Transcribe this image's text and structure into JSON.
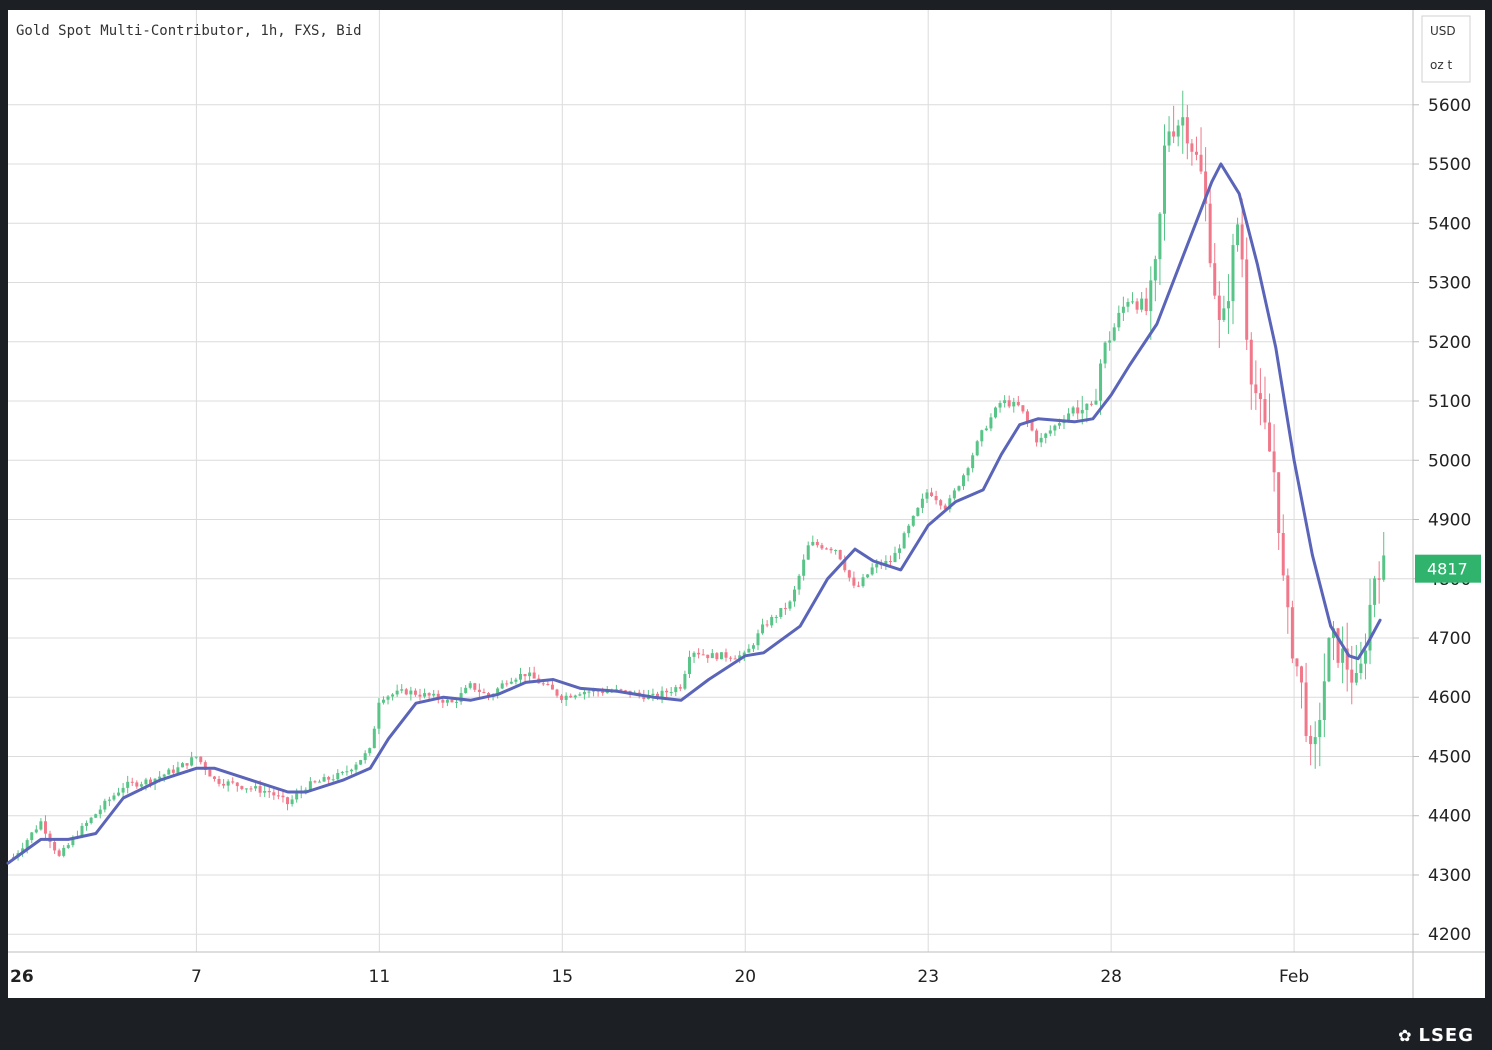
{
  "chart_data": {
    "type": "candlestick",
    "title": "Gold Spot Multi-Contributor, 1h, FXS, Bid",
    "currency": "USD",
    "unit": "oz t",
    "ylim": [
      4170,
      5760
    ],
    "yticks": [
      4200,
      4300,
      4400,
      4500,
      4600,
      4700,
      4800,
      4900,
      5000,
      5100,
      5200,
      5300,
      5400,
      5500,
      5600
    ],
    "xticks": [
      {
        "label": "26",
        "t": 0
      },
      {
        "label": "7",
        "t": 10
      },
      {
        "label": "11",
        "t": 20
      },
      {
        "label": "15",
        "t": 30
      },
      {
        "label": "20",
        "t": 40
      },
      {
        "label": "23",
        "t": 50
      },
      {
        "label": "28",
        "t": 60
      },
      {
        "label": "Feb",
        "t": 70
      }
    ],
    "xlim": [
      -0.3,
      76.5
    ],
    "last_price": "4817",
    "colors": {
      "up": "#58c487",
      "down": "#f0788a",
      "ma": "#5a64b8",
      "last": "#2fb36d"
    },
    "price_path": [
      [
        0,
        4330
      ],
      [
        1.5,
        4390
      ],
      [
        2.5,
        4330
      ],
      [
        3.5,
        4370
      ],
      [
        5,
        4420
      ],
      [
        6,
        4450
      ],
      [
        7.5,
        4460
      ],
      [
        9,
        4480
      ],
      [
        10,
        4500
      ],
      [
        11,
        4460
      ],
      [
        12.5,
        4450
      ],
      [
        14,
        4440
      ],
      [
        15,
        4420
      ],
      [
        16,
        4450
      ],
      [
        18,
        4470
      ],
      [
        19.5,
        4510
      ],
      [
        20,
        4600
      ],
      [
        21.5,
        4610
      ],
      [
        23,
        4600
      ],
      [
        24,
        4590
      ],
      [
        25,
        4620
      ],
      [
        26,
        4600
      ],
      [
        27,
        4630
      ],
      [
        28,
        4640
      ],
      [
        29,
        4620
      ],
      [
        30,
        4600
      ],
      [
        31,
        4610
      ],
      [
        33,
        4610
      ],
      [
        35,
        4600
      ],
      [
        36.5,
        4620
      ],
      [
        37,
        4680
      ],
      [
        38,
        4670
      ],
      [
        40,
        4670
      ],
      [
        41,
        4720
      ],
      [
        42.5,
        4760
      ],
      [
        43.5,
        4860
      ],
      [
        45,
        4850
      ],
      [
        46,
        4780
      ],
      [
        47,
        4820
      ],
      [
        48,
        4830
      ],
      [
        49,
        4890
      ],
      [
        50,
        4950
      ],
      [
        51,
        4920
      ],
      [
        52,
        4980
      ],
      [
        53,
        5050
      ],
      [
        54,
        5100
      ],
      [
        55,
        5090
      ],
      [
        56,
        5030
      ],
      [
        57,
        5060
      ],
      [
        58,
        5090
      ],
      [
        59,
        5080
      ],
      [
        59.5,
        5180
      ],
      [
        61,
        5280
      ],
      [
        62,
        5250
      ],
      [
        62.5,
        5330
      ],
      [
        63,
        5560
      ],
      [
        64,
        5580
      ],
      [
        65,
        5470
      ],
      [
        66,
        5200
      ],
      [
        67,
        5420
      ],
      [
        67.5,
        5180
      ],
      [
        68,
        5100
      ],
      [
        69,
        4970
      ],
      [
        69.5,
        4750
      ],
      [
        70.5,
        4600
      ],
      [
        71,
        4470
      ],
      [
        71.5,
        4600
      ],
      [
        72,
        4700
      ],
      [
        73,
        4650
      ],
      [
        73.5,
        4610
      ],
      [
        74,
        4720
      ],
      [
        74.5,
        4830
      ],
      [
        74.9,
        4817
      ]
    ],
    "ma_path": [
      [
        -0.3,
        4320
      ],
      [
        1.5,
        4360
      ],
      [
        3,
        4360
      ],
      [
        4.5,
        4370
      ],
      [
        6,
        4430
      ],
      [
        8,
        4460
      ],
      [
        10,
        4480
      ],
      [
        11,
        4480
      ],
      [
        13,
        4460
      ],
      [
        15,
        4440
      ],
      [
        16,
        4440
      ],
      [
        18,
        4460
      ],
      [
        19.5,
        4480
      ],
      [
        20.5,
        4530
      ],
      [
        22,
        4590
      ],
      [
        23.5,
        4600
      ],
      [
        25,
        4595
      ],
      [
        26.5,
        4605
      ],
      [
        28,
        4625
      ],
      [
        29.5,
        4630
      ],
      [
        31,
        4615
      ],
      [
        33,
        4610
      ],
      [
        35,
        4600
      ],
      [
        36.5,
        4595
      ],
      [
        38,
        4630
      ],
      [
        40,
        4670
      ],
      [
        41,
        4675
      ],
      [
        43,
        4720
      ],
      [
        44.5,
        4800
      ],
      [
        46,
        4850
      ],
      [
        47,
        4830
      ],
      [
        48.5,
        4815
      ],
      [
        50,
        4890
      ],
      [
        51.5,
        4930
      ],
      [
        53,
        4950
      ],
      [
        54,
        5010
      ],
      [
        55,
        5060
      ],
      [
        56,
        5070
      ],
      [
        58,
        5065
      ],
      [
        59,
        5070
      ],
      [
        60,
        5110
      ],
      [
        61,
        5160
      ],
      [
        62.5,
        5230
      ],
      [
        64,
        5350
      ],
      [
        65.5,
        5470
      ],
      [
        66,
        5500
      ],
      [
        67,
        5450
      ],
      [
        68,
        5330
      ],
      [
        69,
        5190
      ],
      [
        70,
        5000
      ],
      [
        71,
        4840
      ],
      [
        72,
        4720
      ],
      [
        73,
        4670
      ],
      [
        73.5,
        4665
      ],
      [
        74,
        4690
      ],
      [
        74.7,
        4730
      ]
    ]
  }
}
